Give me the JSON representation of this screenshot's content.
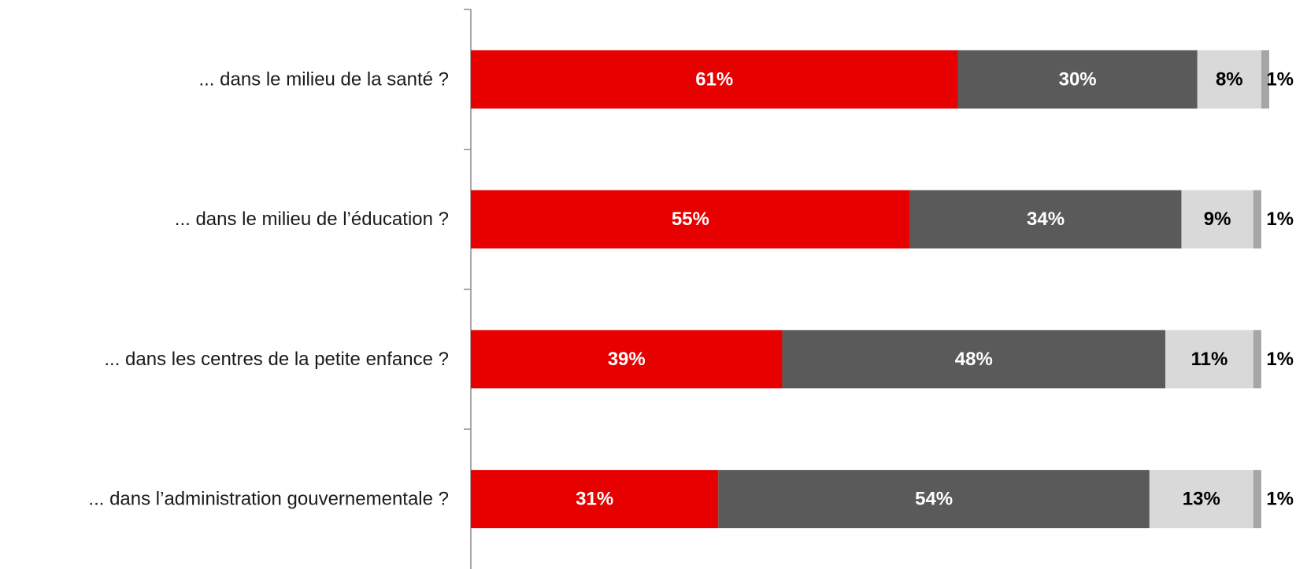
{
  "chart_data": {
    "type": "bar",
    "orientation": "horizontal",
    "stacked": true,
    "categories": [
      "... dans le milieu de la santé ?",
      "... dans le milieu de l’éducation ?",
      "... dans les centres de la petite enfance ?",
      "... dans l’administration gouvernementale ?"
    ],
    "series": [
      {
        "values": [
          61,
          55,
          39,
          31
        ],
        "value_labels": [
          "61%",
          "55%",
          "39%",
          "31%"
        ],
        "color": "#e60000",
        "label_color": "#ffffff"
      },
      {
        "values": [
          30,
          34,
          48,
          54
        ],
        "value_labels": [
          "30%",
          "34%",
          "48%",
          "54%"
        ],
        "color": "#5a5a5a",
        "label_color": "#ffffff"
      },
      {
        "values": [
          8,
          9,
          11,
          13
        ],
        "value_labels": [
          "8%",
          "9%",
          "11%",
          "13%"
        ],
        "color": "#d9d9d9",
        "label_color": "#000000"
      },
      {
        "values": [
          1,
          1,
          1,
          1
        ],
        "value_labels": [
          "1%",
          "1%",
          "1%",
          "1%"
        ],
        "color": "#a6a6a6",
        "label_color": "#000000"
      }
    ],
    "xlim": [
      0,
      100
    ],
    "title": "",
    "xlabel": "",
    "ylabel": "",
    "grid": false,
    "legend": "none"
  }
}
